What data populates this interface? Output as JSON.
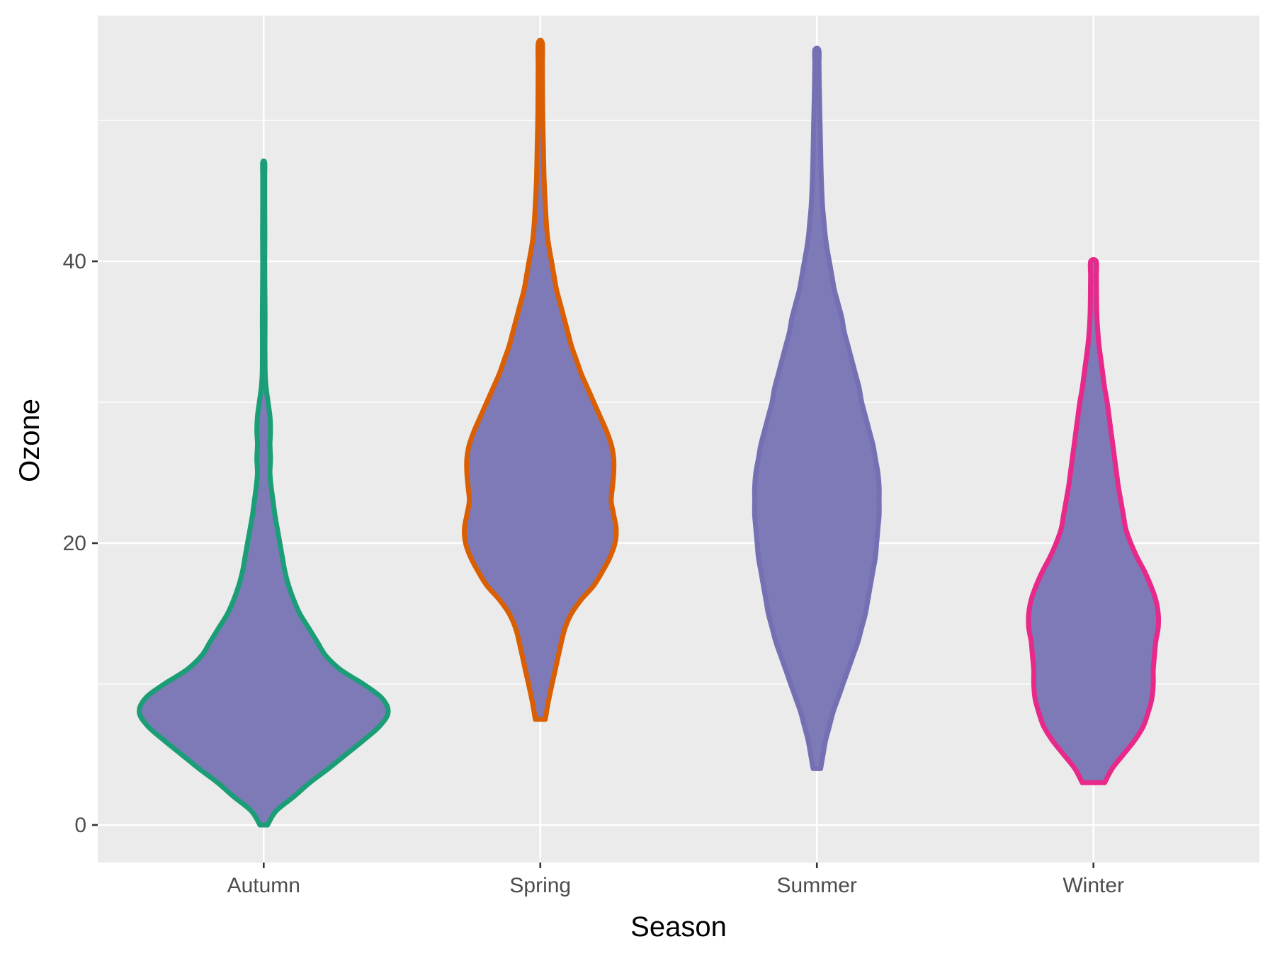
{
  "chart_data": {
    "type": "violin",
    "title": "",
    "xlabel": "Season",
    "ylabel": "Ozone",
    "categories": [
      "Autumn",
      "Spring",
      "Summer",
      "Winter"
    ],
    "ylim": [
      -2.6,
      57.5
    ],
    "yticks": [
      0,
      20,
      40
    ],
    "ytick_labels": [
      "0",
      "20",
      "40"
    ],
    "grid": true,
    "legend": "none",
    "fill_color": "#7570B3",
    "outline_colors": {
      "Autumn": "#1B9E77",
      "Spring": "#D95F02",
      "Summer": "#7570B3",
      "Winter": "#E7298A"
    },
    "series": [
      {
        "name": "Autumn",
        "min": 0,
        "max": 47,
        "density_profile": [
          [
            0,
            0.03
          ],
          [
            1,
            0.1
          ],
          [
            2,
            0.24
          ],
          [
            3,
            0.37
          ],
          [
            4,
            0.52
          ],
          [
            5,
            0.66
          ],
          [
            6,
            0.8
          ],
          [
            7,
            0.93
          ],
          [
            8,
            1.0
          ],
          [
            9,
            0.95
          ],
          [
            10,
            0.8
          ],
          [
            11,
            0.62
          ],
          [
            12,
            0.5
          ],
          [
            13,
            0.43
          ],
          [
            14,
            0.36
          ],
          [
            15,
            0.29
          ],
          [
            16,
            0.24
          ],
          [
            17,
            0.2
          ],
          [
            18,
            0.17
          ],
          [
            19,
            0.15
          ],
          [
            20,
            0.13
          ],
          [
            21,
            0.11
          ],
          [
            22,
            0.09
          ],
          [
            23,
            0.075
          ],
          [
            24,
            0.06
          ],
          [
            25,
            0.05
          ],
          [
            26,
            0.055
          ],
          [
            27,
            0.05
          ],
          [
            28,
            0.055
          ],
          [
            29,
            0.05
          ],
          [
            30,
            0.035
          ],
          [
            31,
            0.02
          ],
          [
            32,
            0.012
          ],
          [
            34,
            0.01
          ],
          [
            36,
            0.011
          ],
          [
            38,
            0.009
          ],
          [
            40,
            0.008
          ],
          [
            42,
            0.009
          ],
          [
            44,
            0.008
          ],
          [
            46,
            0.008
          ],
          [
            47,
            0.008
          ]
        ]
      },
      {
        "name": "Spring",
        "min": 7.5,
        "max": 55.5,
        "density_profile": [
          [
            7.5,
            0.04
          ],
          [
            9,
            0.07
          ],
          [
            11,
            0.12
          ],
          [
            13,
            0.17
          ],
          [
            14,
            0.2
          ],
          [
            15,
            0.25
          ],
          [
            16,
            0.33
          ],
          [
            17,
            0.43
          ],
          [
            18,
            0.5
          ],
          [
            19,
            0.56
          ],
          [
            20,
            0.6
          ],
          [
            21,
            0.61
          ],
          [
            22,
            0.59
          ],
          [
            23,
            0.57
          ],
          [
            24,
            0.58
          ],
          [
            25,
            0.59
          ],
          [
            26,
            0.59
          ],
          [
            27,
            0.57
          ],
          [
            28,
            0.53
          ],
          [
            29,
            0.48
          ],
          [
            30,
            0.43
          ],
          [
            31,
            0.38
          ],
          [
            32,
            0.33
          ],
          [
            33,
            0.29
          ],
          [
            34,
            0.25
          ],
          [
            35,
            0.22
          ],
          [
            36,
            0.19
          ],
          [
            37,
            0.16
          ],
          [
            38,
            0.13
          ],
          [
            39,
            0.11
          ],
          [
            40,
            0.09
          ],
          [
            41,
            0.07
          ],
          [
            42,
            0.055
          ],
          [
            44,
            0.04
          ],
          [
            46,
            0.03
          ],
          [
            48,
            0.025
          ],
          [
            50,
            0.02
          ],
          [
            52,
            0.018
          ],
          [
            54,
            0.017
          ],
          [
            55.5,
            0.016
          ]
        ]
      },
      {
        "name": "Summer",
        "min": 4,
        "max": 55,
        "density_profile": [
          [
            4,
            0.03
          ],
          [
            5,
            0.05
          ],
          [
            6,
            0.07
          ],
          [
            7,
            0.1
          ],
          [
            8,
            0.13
          ],
          [
            9,
            0.17
          ],
          [
            10,
            0.21
          ],
          [
            11,
            0.25
          ],
          [
            12,
            0.29
          ],
          [
            13,
            0.33
          ],
          [
            14,
            0.36
          ],
          [
            15,
            0.39
          ],
          [
            16,
            0.41
          ],
          [
            17,
            0.43
          ],
          [
            18,
            0.45
          ],
          [
            19,
            0.47
          ],
          [
            20,
            0.48
          ],
          [
            21,
            0.49
          ],
          [
            22,
            0.5
          ],
          [
            23,
            0.5
          ],
          [
            24,
            0.5
          ],
          [
            25,
            0.49
          ],
          [
            26,
            0.47
          ],
          [
            27,
            0.45
          ],
          [
            28,
            0.42
          ],
          [
            29,
            0.39
          ],
          [
            30,
            0.36
          ],
          [
            31,
            0.34
          ],
          [
            32,
            0.31
          ],
          [
            33,
            0.28
          ],
          [
            34,
            0.25
          ],
          [
            35,
            0.22
          ],
          [
            36,
            0.2
          ],
          [
            37,
            0.17
          ],
          [
            38,
            0.14
          ],
          [
            39,
            0.12
          ],
          [
            40,
            0.1
          ],
          [
            41,
            0.08
          ],
          [
            42,
            0.065
          ],
          [
            43,
            0.055
          ],
          [
            44,
            0.045
          ],
          [
            46,
            0.035
          ],
          [
            48,
            0.03
          ],
          [
            50,
            0.025
          ],
          [
            52,
            0.02
          ],
          [
            54,
            0.017
          ],
          [
            55,
            0.016
          ]
        ]
      },
      {
        "name": "Winter",
        "min": 3,
        "max": 40,
        "density_profile": [
          [
            3,
            0.09
          ],
          [
            4,
            0.15
          ],
          [
            5,
            0.24
          ],
          [
            6,
            0.33
          ],
          [
            7,
            0.4
          ],
          [
            8,
            0.44
          ],
          [
            9,
            0.47
          ],
          [
            10,
            0.48
          ],
          [
            11,
            0.48
          ],
          [
            12,
            0.49
          ],
          [
            13,
            0.5
          ],
          [
            14,
            0.52
          ],
          [
            15,
            0.52
          ],
          [
            16,
            0.5
          ],
          [
            17,
            0.46
          ],
          [
            18,
            0.41
          ],
          [
            19,
            0.35
          ],
          [
            20,
            0.3
          ],
          [
            21,
            0.26
          ],
          [
            22,
            0.24
          ],
          [
            23,
            0.22
          ],
          [
            24,
            0.2
          ],
          [
            25,
            0.185
          ],
          [
            26,
            0.17
          ],
          [
            27,
            0.155
          ],
          [
            28,
            0.14
          ],
          [
            29,
            0.125
          ],
          [
            30,
            0.11
          ],
          [
            31,
            0.09
          ],
          [
            32,
            0.075
          ],
          [
            33,
            0.06
          ],
          [
            34,
            0.045
          ],
          [
            35,
            0.035
          ],
          [
            36,
            0.028
          ],
          [
            37,
            0.025
          ],
          [
            38,
            0.024
          ],
          [
            39,
            0.023
          ],
          [
            40,
            0.022
          ]
        ]
      }
    ]
  }
}
